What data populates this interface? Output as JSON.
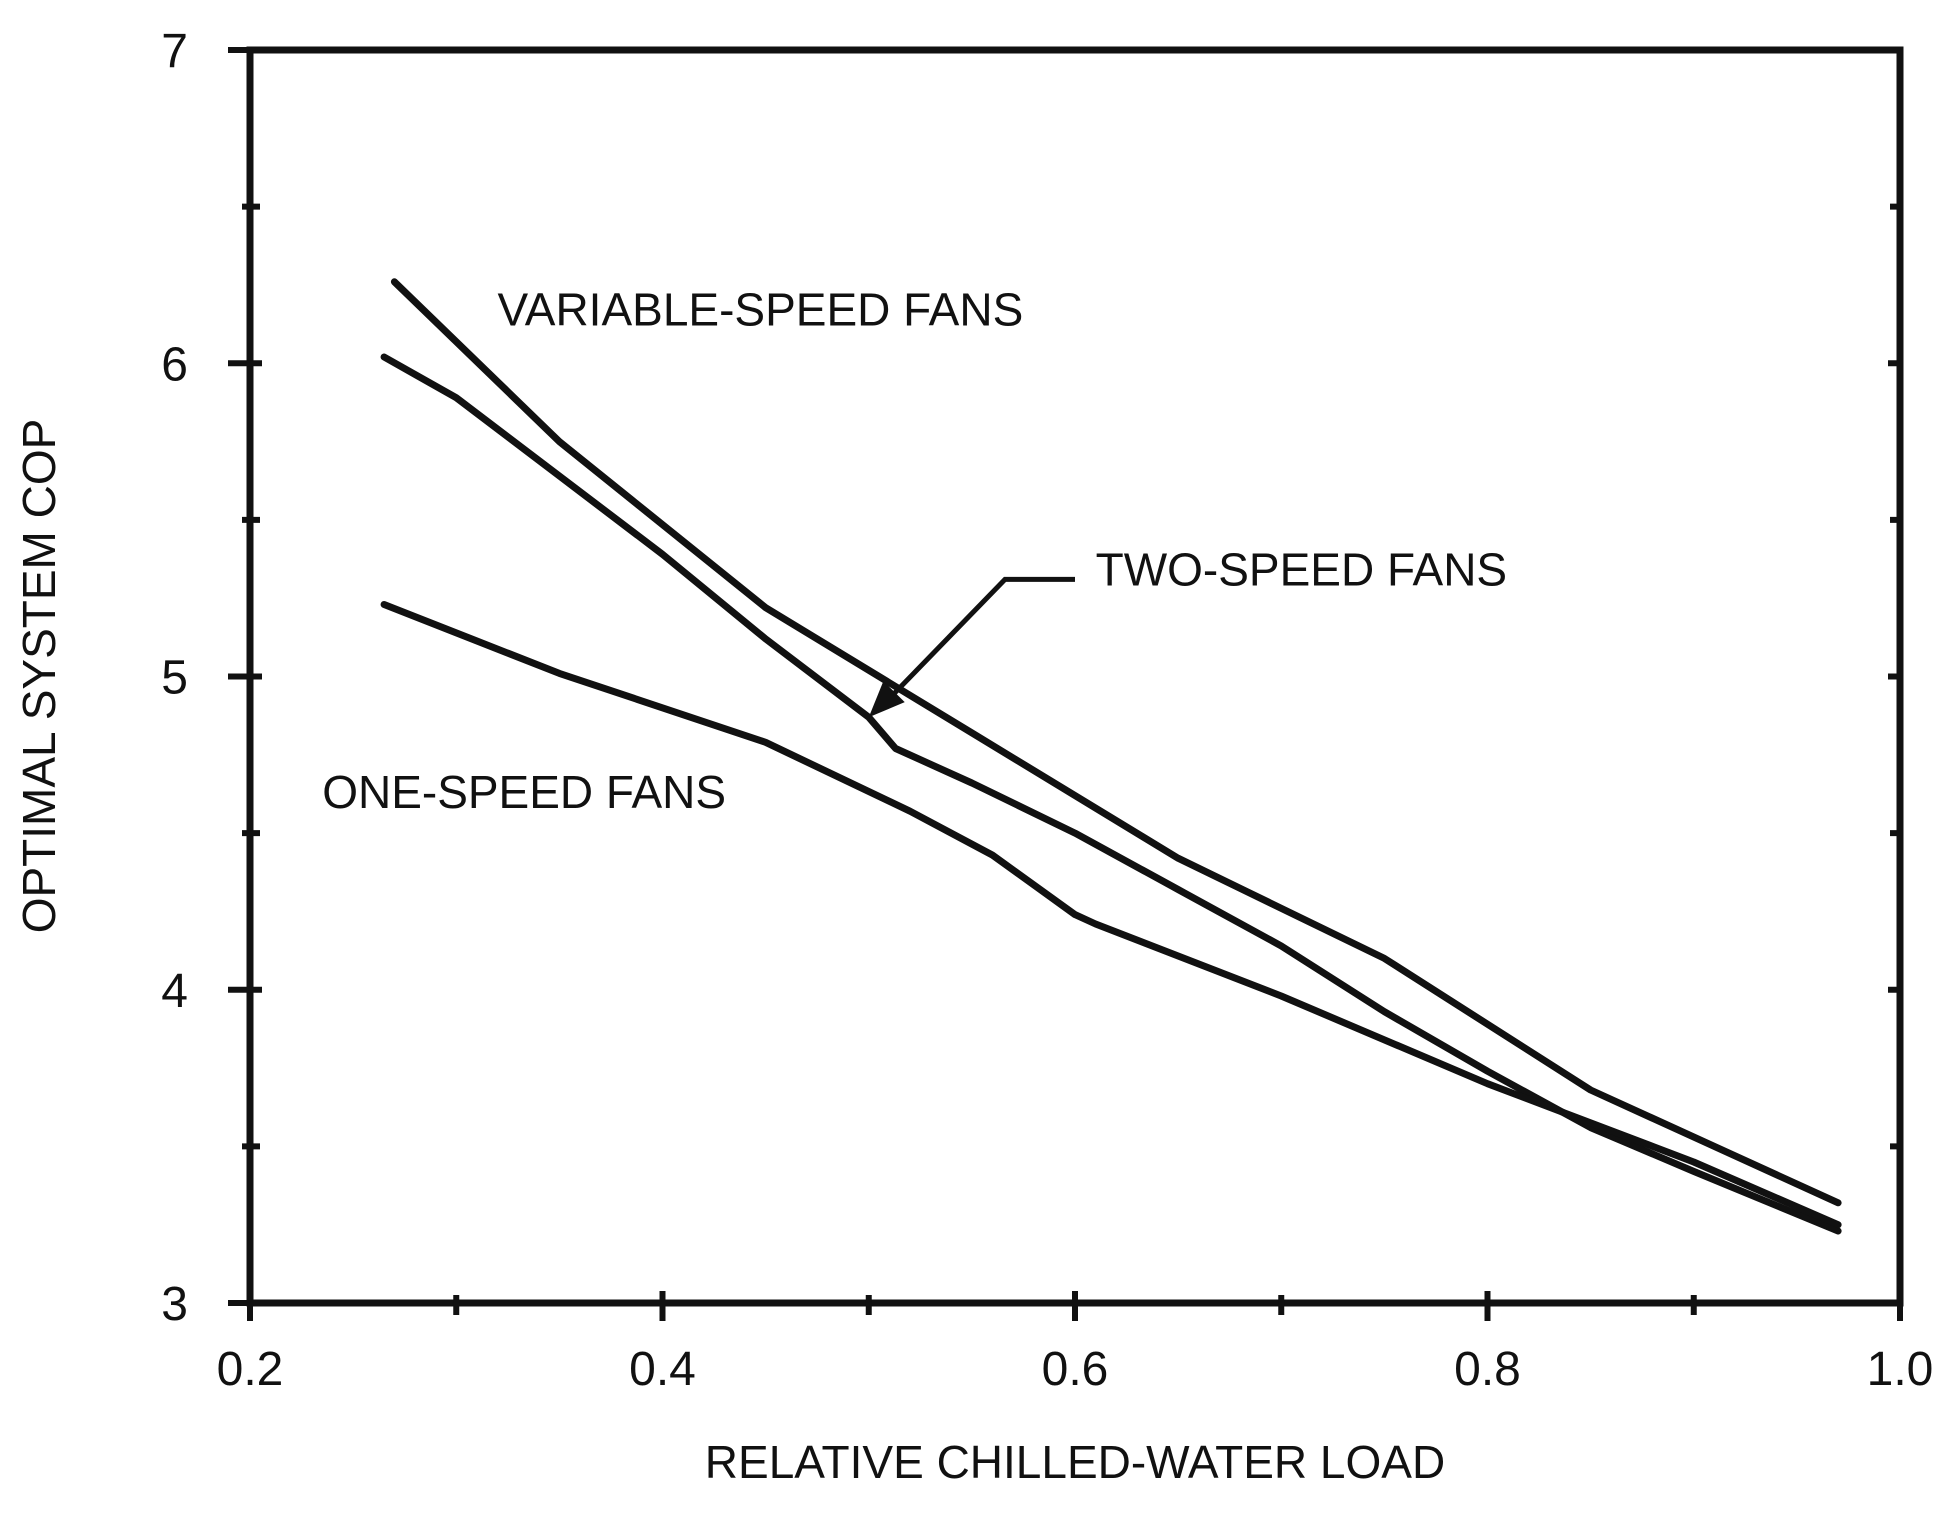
{
  "chart_data": {
    "type": "line",
    "xlabel": "RELATIVE CHILLED-WATER LOAD",
    "ylabel": "OPTIMAL SYSTEM COP",
    "xlim": [
      0.2,
      1.0
    ],
    "ylim": [
      3,
      7
    ],
    "x_ticks": [
      0.2,
      0.4,
      0.6,
      0.8,
      1.0
    ],
    "x_tick_labels": [
      "0.2",
      "0.4",
      "0.6",
      "0.8",
      "1.0"
    ],
    "x_minor_ticks": [
      0.3,
      0.5,
      0.7,
      0.9
    ],
    "y_ticks": [
      3,
      4,
      5,
      6,
      7
    ],
    "y_tick_labels": [
      "3",
      "4",
      "5",
      "6",
      "7"
    ],
    "y_minor_ticks": [
      3.5,
      4.5,
      5.5,
      6.5
    ],
    "grid": false,
    "series": [
      {
        "name": "VARIABLE-SPEED FANS",
        "x": [
          0.27,
          0.35,
          0.45,
          0.55,
          0.65,
          0.75,
          0.85,
          0.97
        ],
        "y": [
          6.26,
          5.75,
          5.22,
          4.82,
          4.42,
          4.1,
          3.68,
          3.32
        ]
      },
      {
        "name": "TWO-SPEED FANS",
        "x": [
          0.265,
          0.3,
          0.35,
          0.4,
          0.45,
          0.5,
          0.513,
          0.55,
          0.6,
          0.65,
          0.7,
          0.75,
          0.8,
          0.85,
          0.9,
          0.97
        ],
        "y": [
          6.02,
          5.89,
          5.64,
          5.39,
          5.12,
          4.87,
          4.77,
          4.66,
          4.5,
          4.32,
          4.14,
          3.93,
          3.74,
          3.56,
          3.42,
          3.23
        ]
      },
      {
        "name": "ONE-SPEED FANS",
        "x": [
          0.265,
          0.35,
          0.45,
          0.52,
          0.56,
          0.6,
          0.61,
          0.7,
          0.8,
          0.9,
          0.97
        ],
        "y": [
          5.23,
          5.01,
          4.79,
          4.57,
          4.43,
          4.24,
          4.21,
          3.98,
          3.7,
          3.45,
          3.25
        ]
      }
    ],
    "annotations": [
      {
        "text": "VARIABLE-SPEED FANS",
        "x": 0.32,
        "y": 6.12
      },
      {
        "text": "TWO-SPEED FANS",
        "x": 0.61,
        "y": 5.29,
        "pointer_from": [
          0.6,
          5.31
        ],
        "pointer_to": [
          0.5,
          4.87
        ]
      },
      {
        "text": "ONE-SPEED FANS",
        "x": 0.235,
        "y": 4.58
      }
    ]
  }
}
